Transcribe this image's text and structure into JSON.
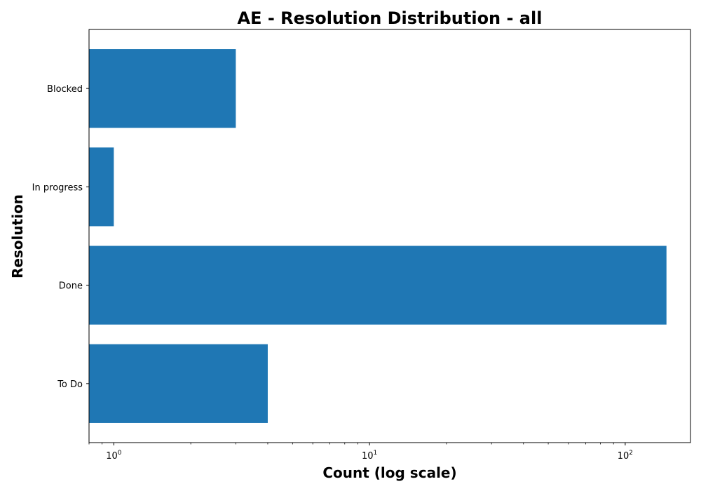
{
  "chart_data": {
    "type": "bar",
    "orientation": "horizontal",
    "title": "AE - Resolution Distribution - all",
    "xlabel": "Count (log scale)",
    "ylabel": "Resolution",
    "x_scale": "log",
    "xlim": [
      0.8,
      180
    ],
    "x_ticks": [
      {
        "value": 1,
        "base": "10",
        "exp": "0"
      },
      {
        "value": 10,
        "base": "10",
        "exp": "1"
      },
      {
        "value": 100,
        "base": "10",
        "exp": "2"
      }
    ],
    "categories": [
      "To Do",
      "Done",
      "In progress",
      "Blocked"
    ],
    "values": [
      4,
      145,
      1,
      3
    ],
    "bar_color": "#1f77b4",
    "grid": false,
    "legend": "none"
  }
}
